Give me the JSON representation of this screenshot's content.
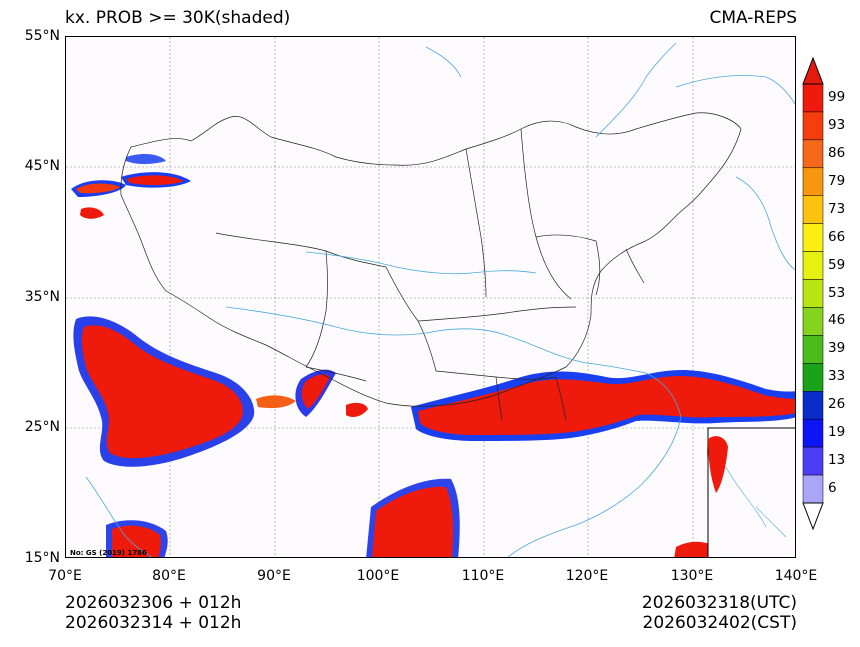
{
  "header": {
    "title_left": "kx. PROB >= 30K(shaded)",
    "title_right": "CMA-REPS"
  },
  "axes": {
    "lat_labels": [
      "55°N",
      "45°N",
      "35°N",
      "25°N",
      "15°N"
    ],
    "lon_labels": [
      "70°E",
      "80°E",
      "90°E",
      "100°E",
      "110°E",
      "120°E",
      "130°E",
      "140°E"
    ]
  },
  "map": {
    "credit": "No: GS (2019) 1786"
  },
  "colorbar": {
    "levels": [
      "99",
      "93",
      "86",
      "79",
      "73",
      "66",
      "59",
      "53",
      "46",
      "39",
      "33",
      "26",
      "19",
      "13",
      "6"
    ],
    "colors": [
      "#ee1a0b",
      "#f53d0e",
      "#f6691a",
      "#f79710",
      "#fbc30d",
      "#fcef13",
      "#e5f10e",
      "#b8e612",
      "#86d31d",
      "#4cbb1c",
      "#1aa218",
      "#0a2dca",
      "#0d15f4",
      "#4a3ff5",
      "#a9a6f7"
    ],
    "top_cap_color": "#e41b0c",
    "bottom_cap_color": "#ffffff"
  },
  "footer": {
    "left_line1": "2026032306  +  012h",
    "left_line2": "2026032314  +  012h",
    "right_line1": "2026032318(UTC)",
    "right_line2": "2026032402(CST)"
  }
}
